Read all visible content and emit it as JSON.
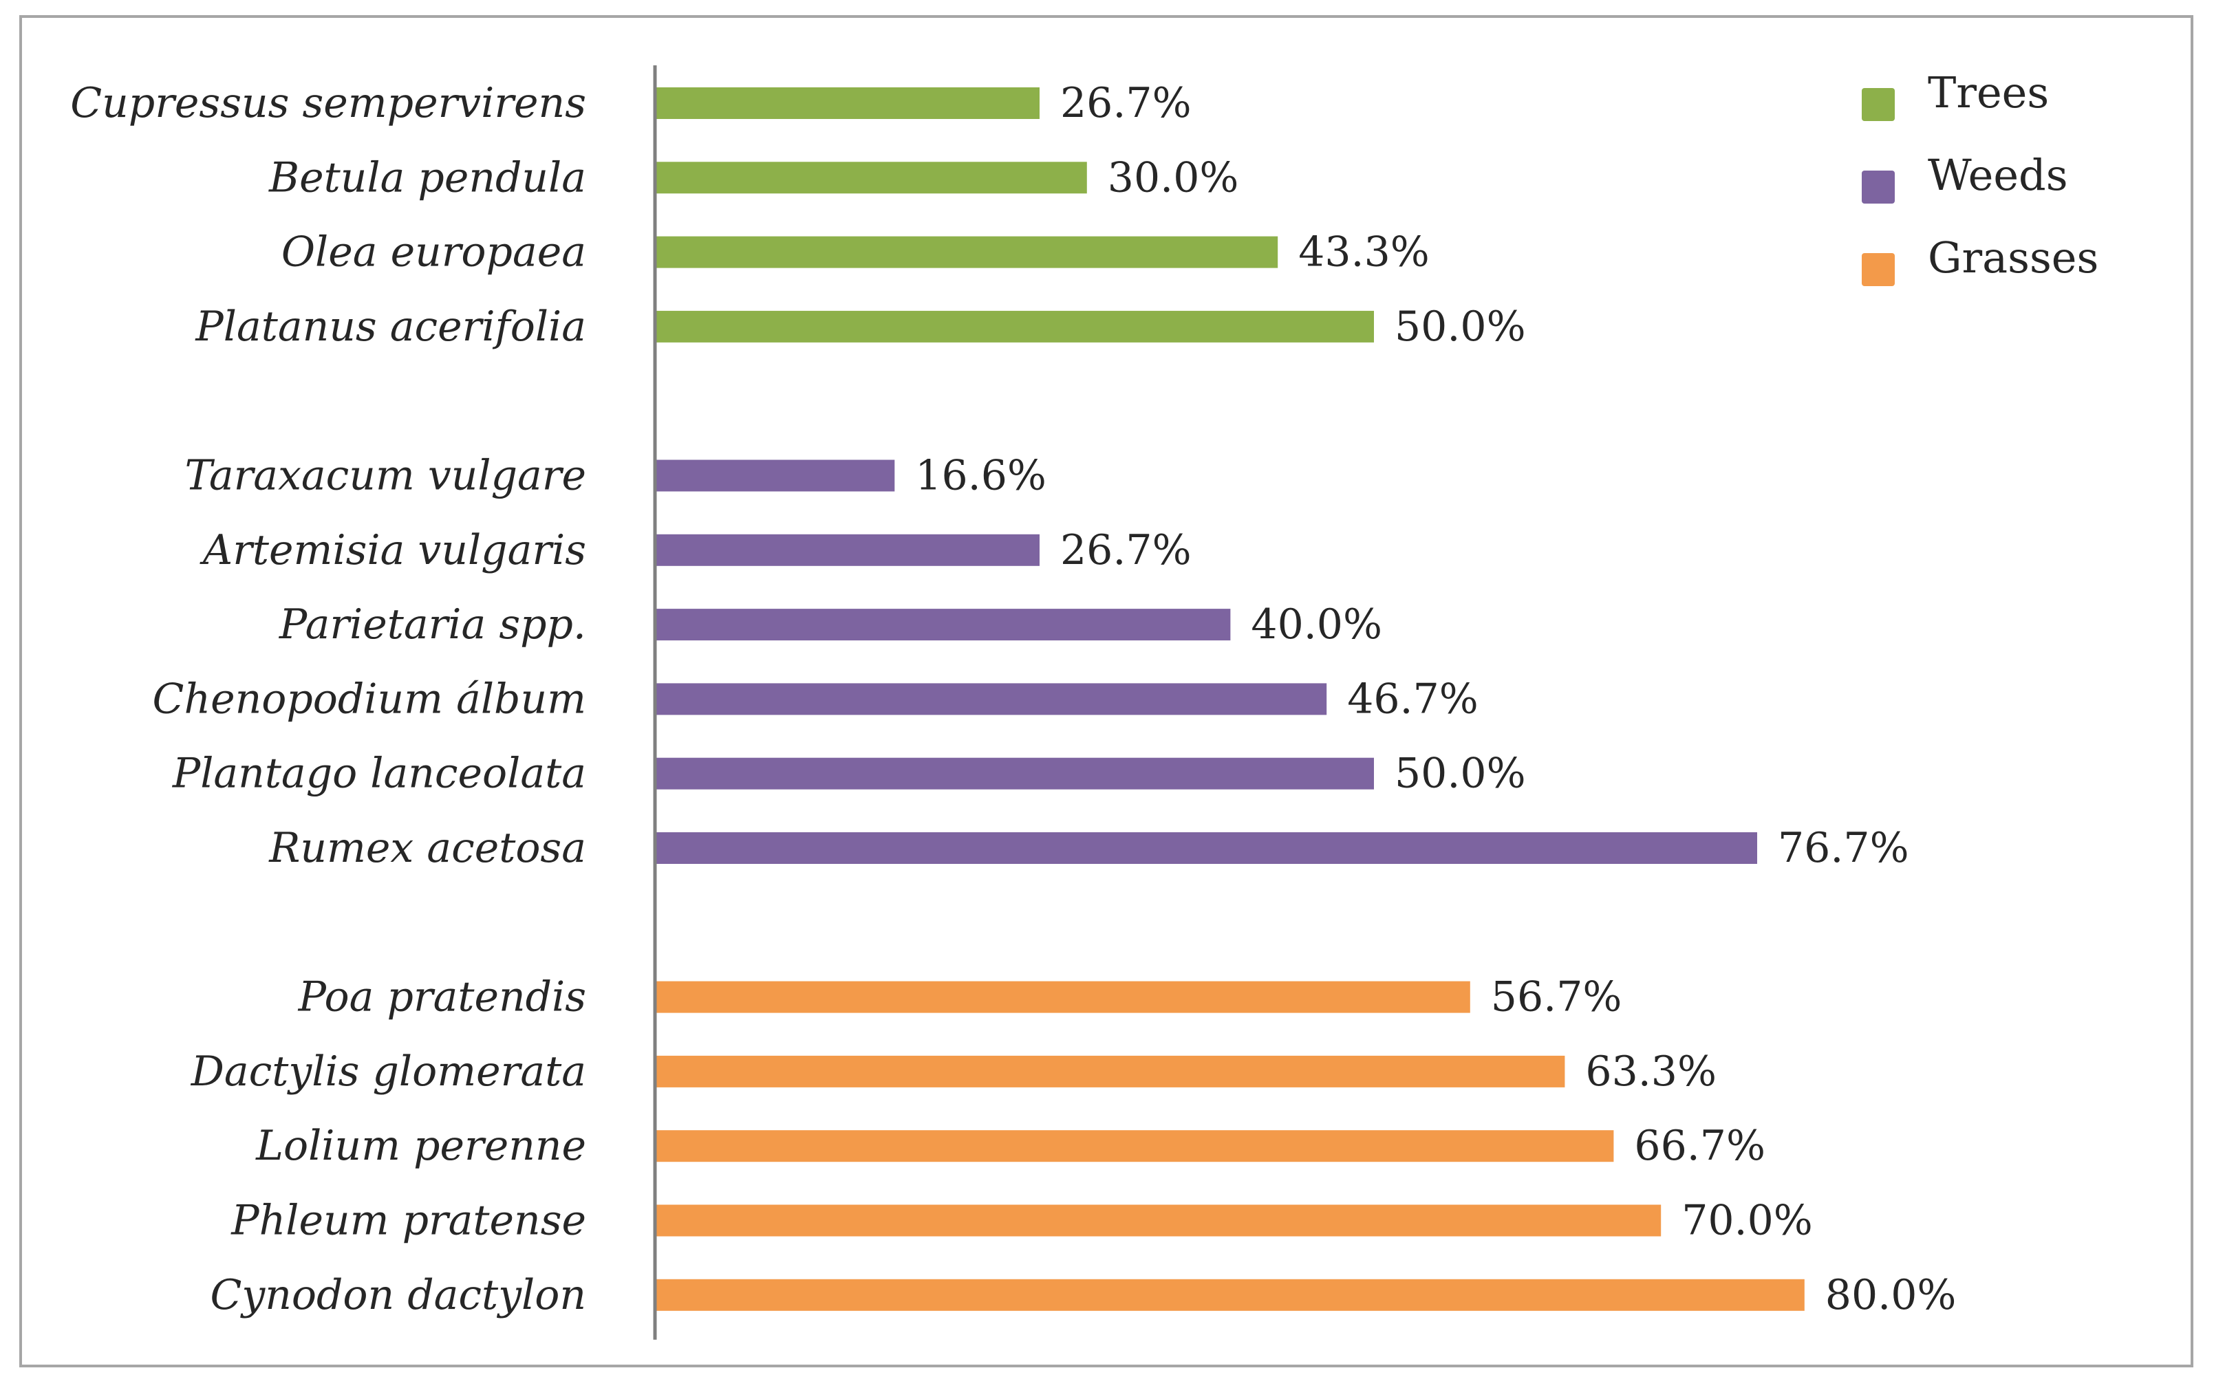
{
  "chart_data": {
    "type": "bar",
    "orientation": "horizontal",
    "title": "",
    "xlabel": "",
    "ylabel": "",
    "xlim": [
      0,
      100
    ],
    "grid": false,
    "legend_position": "top-right",
    "series": [
      {
        "name": "Trees",
        "color": "#8db04a",
        "categories": [
          "Cupressus sempervirens",
          "Betula pendula",
          "Olea europaea",
          "Platanus acerifolia"
        ],
        "values": [
          26.7,
          30.0,
          43.3,
          50.0
        ],
        "labels": [
          "26.7%",
          "30.0%",
          "43.3%",
          "50.0%"
        ]
      },
      {
        "name": "Weeds",
        "color": "#7d64a0",
        "categories": [
          "Taraxacum vulgare",
          "Artemisia vulgaris",
          "Parietaria spp.",
          "Chenopodium álbum",
          "Plantago lanceolata",
          "Rumex acetosa"
        ],
        "values": [
          16.6,
          26.7,
          40.0,
          46.7,
          50.0,
          76.7
        ],
        "labels": [
          "16.6%",
          "26.7%",
          "40.0%",
          "46.7%",
          "50.0%",
          "76.7%"
        ]
      },
      {
        "name": "Grasses",
        "color": "#f39a4a",
        "categories": [
          "Poa pratendis",
          "Dactylis glomerata",
          "Lolium perenne",
          "Phleum pratense",
          "Cynodon dactylon"
        ],
        "values": [
          56.7,
          63.3,
          66.7,
          70.0,
          80.0
        ],
        "labels": [
          "56.7%",
          "63.3%",
          "66.7%",
          "70.0%",
          "80.0%"
        ]
      }
    ]
  },
  "colors": {
    "axis": "#7f7f7f",
    "text": "#262626",
    "border": "#a6a6a6"
  }
}
